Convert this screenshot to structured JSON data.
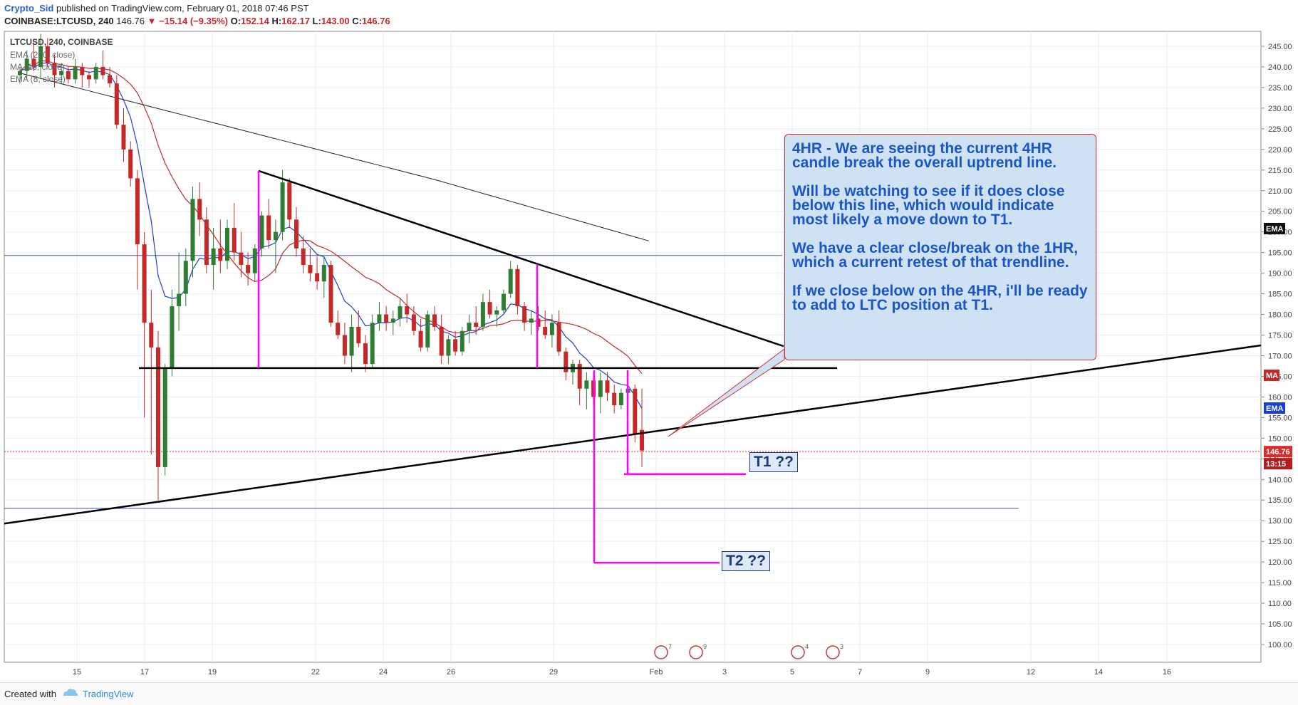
{
  "header": {
    "author": "Crypto_Sid",
    "published": "published on TradingView.com, February 01, 2018 07:46 PST",
    "symbol_line": "COINBASE:LTCUSD, 240",
    "last": "146.76",
    "change": "▼ −15.14 (−9.35%)",
    "ohlc": {
      "o_label": "O:",
      "o": "152.14",
      "h_label": "H:",
      "h": "162.17",
      "l_label": "L:",
      "l": "143.00",
      "c_label": "C:",
      "c": "146.76"
    }
  },
  "legend": {
    "title": "LTCUSD, 240, COINBASE",
    "ind1": "EMA (200, close)",
    "ind2": "MA (18, close)",
    "ind3": "EMA (8, close)"
  },
  "callout": {
    "p1": "4HR -  We are seeing the current 4HR candle break the overall uptrend line.",
    "p2": "Will be watching to see if it does close below this line, which would indicate most likely a move down to T1.",
    "p3": "We have a clear close/break on the 1HR, which a current retest of that trendline.",
    "p4": "If we close below on the 4HR, i'll be ready to add to LTC position at T1."
  },
  "targets": {
    "t1": "T1 ??",
    "t2": "T2 ??"
  },
  "badges": {
    "ema200": "EMA",
    "ma": "MA",
    "ema8": "EMA",
    "price": "146.76",
    "timer": "13:15"
  },
  "colors": {
    "up": "#2e7d32",
    "down": "#c62828",
    "ema8": "#1a3fd6",
    "ma18": "#c62828",
    "ema200": "#222222",
    "magenta": "#ff00ff",
    "hline": "#3f51b5"
  },
  "footer": {
    "created": "Created with",
    "brand": "TradingView"
  },
  "chart_data": {
    "type": "candlestick",
    "y_axis": {
      "range": [
        96,
        248
      ],
      "ticks": [
        100,
        105,
        110,
        115,
        120,
        125,
        130,
        135,
        140,
        145,
        150,
        155,
        160,
        165,
        170,
        175,
        180,
        185,
        190,
        195,
        200,
        205,
        210,
        215,
        220,
        225,
        230,
        235,
        240,
        245
      ]
    },
    "x_axis": {
      "ticks": [
        "15",
        "17",
        "19",
        "22",
        "24",
        "26",
        "29",
        "Feb",
        "3",
        "5",
        "7",
        "9",
        "12",
        "14",
        "16"
      ]
    },
    "candles": [
      [
        0,
        238,
        240,
        236,
        239
      ],
      [
        1,
        239,
        244,
        237,
        242
      ],
      [
        2,
        242,
        246,
        239,
        240
      ],
      [
        3,
        240,
        248,
        237,
        245
      ],
      [
        4,
        245,
        247,
        240,
        241
      ],
      [
        5,
        241,
        243,
        235,
        238
      ],
      [
        6,
        238,
        241,
        236,
        239
      ],
      [
        7,
        239,
        240,
        236,
        237
      ],
      [
        8,
        237,
        242,
        236,
        240
      ],
      [
        9,
        240,
        241,
        235,
        238
      ],
      [
        10,
        238,
        239,
        235,
        237
      ],
      [
        11,
        237,
        241,
        236,
        240
      ],
      [
        12,
        240,
        244,
        237,
        238
      ],
      [
        13,
        238,
        240,
        235,
        236
      ],
      [
        14,
        236,
        238,
        225,
        226
      ],
      [
        15,
        226,
        230,
        217,
        220
      ],
      [
        16,
        220,
        222,
        211,
        213
      ],
      [
        17,
        213,
        215,
        186,
        197
      ],
      [
        18,
        197,
        200,
        155,
        178
      ],
      [
        19,
        178,
        186,
        146,
        172
      ],
      [
        20,
        172,
        176,
        135,
        143
      ],
      [
        21,
        143,
        168,
        141,
        167
      ],
      [
        22,
        167,
        186,
        165,
        182
      ],
      [
        23,
        182,
        195,
        176,
        185
      ],
      [
        24,
        185,
        196,
        182,
        193
      ],
      [
        25,
        193,
        211,
        189,
        208
      ],
      [
        26,
        208,
        212,
        199,
        203
      ],
      [
        27,
        203,
        206,
        190,
        192
      ],
      [
        28,
        192,
        201,
        186,
        196
      ],
      [
        29,
        196,
        203,
        190,
        193
      ],
      [
        30,
        193,
        203,
        191,
        201
      ],
      [
        31,
        201,
        207,
        193,
        195
      ],
      [
        32,
        195,
        200,
        189,
        192
      ],
      [
        33,
        192,
        195,
        187,
        190
      ],
      [
        34,
        190,
        197,
        188,
        196
      ],
      [
        35,
        196,
        205,
        194,
        204
      ],
      [
        36,
        204,
        208,
        196,
        198
      ],
      [
        37,
        198,
        203,
        190,
        200
      ],
      [
        38,
        200,
        215,
        198,
        212
      ],
      [
        39,
        212,
        213,
        201,
        203
      ],
      [
        40,
        203,
        206,
        194,
        196
      ],
      [
        41,
        196,
        199,
        190,
        192
      ],
      [
        42,
        192,
        196,
        188,
        190
      ],
      [
        43,
        190,
        194,
        186,
        188
      ],
      [
        44,
        188,
        194,
        184,
        192
      ],
      [
        45,
        192,
        193,
        177,
        178
      ],
      [
        46,
        178,
        181,
        174,
        175
      ],
      [
        47,
        175,
        178,
        168,
        170
      ],
      [
        48,
        170,
        180,
        166,
        177
      ],
      [
        49,
        177,
        181,
        172,
        173
      ],
      [
        50,
        173,
        175,
        166,
        168
      ],
      [
        51,
        168,
        180,
        167,
        178
      ],
      [
        52,
        178,
        183,
        176,
        180
      ],
      [
        53,
        180,
        182,
        176,
        178
      ],
      [
        54,
        178,
        181,
        175,
        179
      ],
      [
        55,
        179,
        184,
        177,
        182
      ],
      [
        56,
        182,
        185,
        178,
        180
      ],
      [
        57,
        180,
        182,
        175,
        176
      ],
      [
        58,
        176,
        179,
        171,
        172
      ],
      [
        59,
        172,
        181,
        171,
        180
      ],
      [
        60,
        180,
        182,
        176,
        177
      ],
      [
        61,
        177,
        180,
        168,
        170
      ],
      [
        62,
        170,
        175,
        168,
        174
      ],
      [
        63,
        174,
        176,
        170,
        171
      ],
      [
        64,
        171,
        177,
        170,
        176
      ],
      [
        65,
        176,
        180,
        173,
        178
      ],
      [
        66,
        178,
        182,
        175,
        177
      ],
      [
        67,
        177,
        185,
        176,
        183
      ],
      [
        68,
        183,
        186,
        179,
        180
      ],
      [
        69,
        180,
        182,
        177,
        181
      ],
      [
        70,
        181,
        186,
        180,
        185
      ],
      [
        71,
        185,
        193,
        184,
        191
      ],
      [
        72,
        191,
        192,
        180,
        182
      ],
      [
        73,
        182,
        183,
        176,
        178
      ],
      [
        74,
        178,
        181,
        175,
        179
      ],
      [
        75,
        179,
        182,
        176,
        177
      ],
      [
        76,
        177,
        181,
        174,
        175
      ],
      [
        77,
        175,
        180,
        172,
        178
      ],
      [
        78,
        178,
        181,
        170,
        171
      ],
      [
        79,
        171,
        172,
        164,
        166
      ],
      [
        80,
        166,
        169,
        163,
        168
      ],
      [
        81,
        168,
        169,
        158,
        162
      ],
      [
        82,
        162,
        166,
        157,
        164
      ],
      [
        83,
        164,
        166,
        158,
        160
      ],
      [
        84,
        160,
        166,
        156,
        164
      ],
      [
        85,
        164,
        166,
        159,
        161
      ],
      [
        86,
        161,
        163,
        156,
        158
      ],
      [
        87,
        158,
        162,
        157,
        161
      ],
      [
        88,
        161,
        163,
        159,
        162
      ],
      [
        89,
        162,
        163,
        149,
        151
      ],
      [
        90,
        152,
        162,
        143,
        147
      ]
    ],
    "annotations": [
      "4HR uptrend line",
      "descending trendline",
      "horizontal support 167",
      "T1 141",
      "T2 120"
    ]
  }
}
